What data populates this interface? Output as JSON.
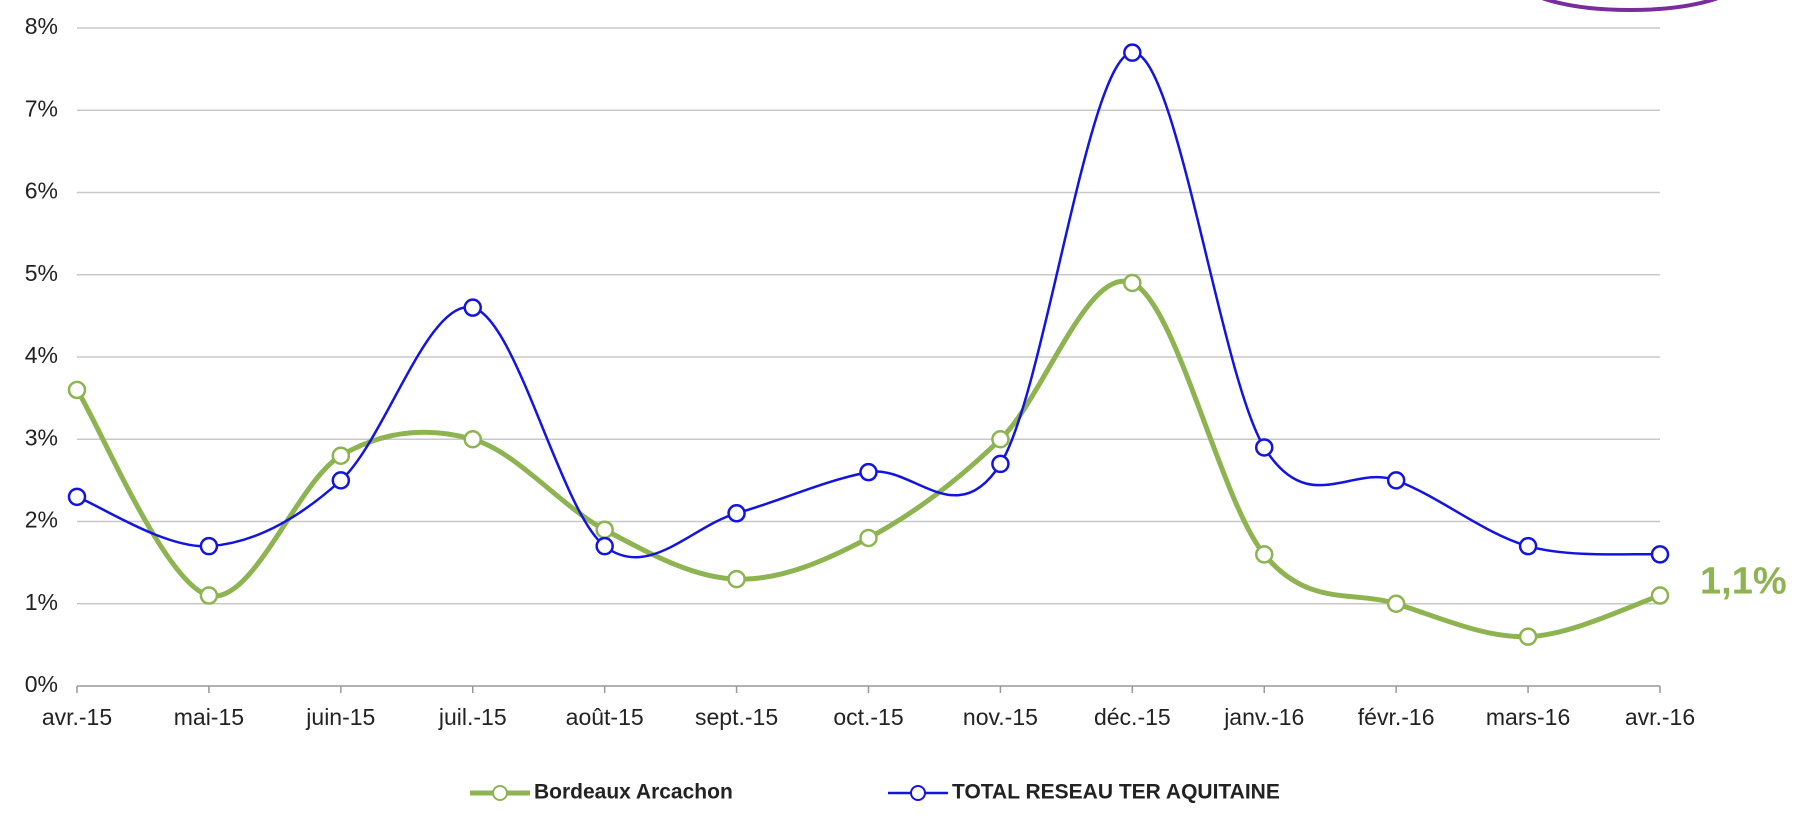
{
  "chart_data": {
    "type": "line",
    "categories": [
      "avr.-15",
      "mai-15",
      "juin-15",
      "juil.-15",
      "août-15",
      "sept.-15",
      "oct.-15",
      "nov.-15",
      "déc.-15",
      "janv.-16",
      "févr.-16",
      "mars-16",
      "avr.-16"
    ],
    "series": [
      {
        "name": "Bordeaux Arcachon",
        "color": "#8db451",
        "values": [
          3.6,
          1.1,
          2.8,
          3.0,
          1.9,
          1.3,
          1.8,
          3.0,
          4.9,
          1.6,
          1.0,
          0.6,
          1.1
        ]
      },
      {
        "name": "TOTAL RESEAU TER AQUITAINE",
        "color": "#1414e0",
        "values": [
          2.3,
          1.7,
          2.5,
          4.6,
          1.7,
          2.1,
          2.6,
          2.7,
          7.7,
          2.9,
          2.5,
          1.7,
          1.6
        ]
      }
    ],
    "ylim": [
      0,
      8
    ],
    "yticks": [
      {
        "value": 0,
        "label": "0%"
      },
      {
        "value": 1,
        "label": "1%"
      },
      {
        "value": 2,
        "label": "2%"
      },
      {
        "value": 3,
        "label": "3%"
      },
      {
        "value": 4,
        "label": "4%"
      },
      {
        "value": 5,
        "label": "5%"
      },
      {
        "value": 6,
        "label": "6%"
      },
      {
        "value": 7,
        "label": "7%"
      },
      {
        "value": 8,
        "label": "8%"
      }
    ],
    "grid": true,
    "legend": "bottom",
    "annotation": {
      "label": "1,1%",
      "value": 1.1
    }
  }
}
